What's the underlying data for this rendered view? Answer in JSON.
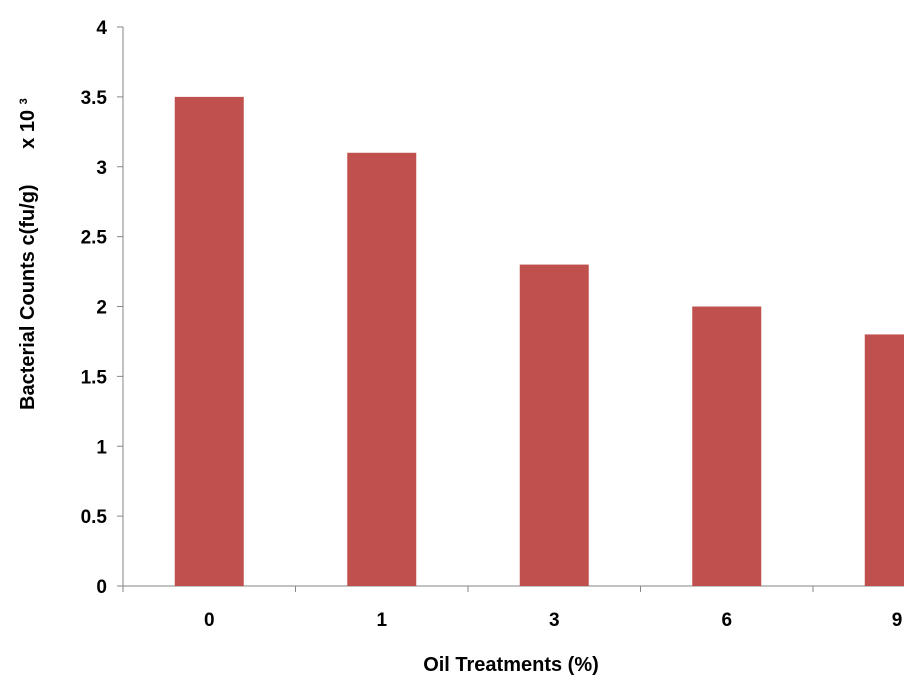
{
  "chart_data": {
    "type": "bar",
    "categories": [
      "0",
      "1",
      "3",
      "6",
      "9"
    ],
    "values": [
      3.5,
      3.1,
      2.3,
      2.0,
      1.8
    ],
    "xlabel": "Oil Treatments (%)",
    "ylabel_main": "Bacterial Counts  c(fu/g)",
    "ylabel_unit": "x 10",
    "ylabel_exponent": "3",
    "ylim": [
      0,
      4
    ],
    "yticks": [
      "0",
      "0.5",
      "1",
      "1.5",
      "2",
      "2.5",
      "3",
      "3.5",
      "4"
    ],
    "grid": false,
    "legend": "none",
    "bar_color": "#C0504D"
  }
}
